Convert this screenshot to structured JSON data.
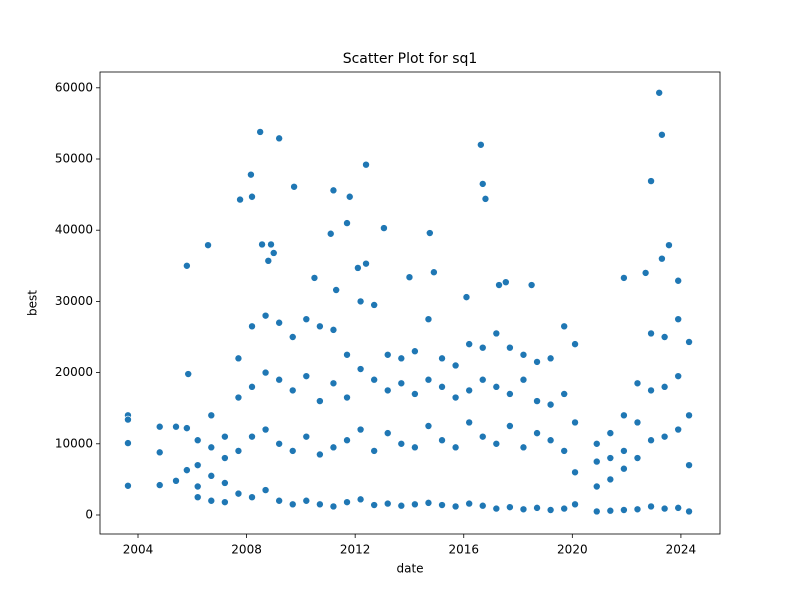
{
  "chart_data": {
    "type": "scatter",
    "title": "Scatter Plot for sq1",
    "x_label": "date",
    "y_label": "best",
    "color": "#1f77b4",
    "x": [
      2003.63,
      2003.63,
      2003.63,
      2003.63,
      2004.8,
      2004.8,
      2004.8,
      2005.4,
      2005.4,
      2005.8,
      2005.8,
      2005.8,
      2005.85,
      2006.58,
      2007.76,
      2008.16,
      2008.2,
      2008.5,
      2008.57,
      2008.8,
      2008.9,
      2009.0,
      2009.2,
      2009.75,
      2010.5,
      2011.1,
      2011.2,
      2011.3,
      2011.7,
      2011.8,
      2012.1,
      2012.4,
      2012.4,
      2013.06,
      2014.0,
      2014.75,
      2014.9,
      2016.1,
      2016.63,
      2016.7,
      2016.8,
      2017.3,
      2017.55,
      2018.5,
      2021.9,
      2022.7,
      2022.9,
      2023.2,
      2023.3,
      2023.3,
      2023.56,
      2023.9,
      2006.2,
      2006.2,
      2006.2,
      2006.2,
      2006.7,
      2006.7,
      2006.7,
      2006.7,
      2007.2,
      2007.2,
      2007.2,
      2007.2,
      2007.7,
      2007.7,
      2007.7,
      2007.7,
      2008.2,
      2008.2,
      2008.2,
      2008.2,
      2008.7,
      2008.7,
      2008.7,
      2008.7,
      2009.2,
      2009.2,
      2009.2,
      2009.2,
      2009.7,
      2009.7,
      2009.7,
      2009.7,
      2010.2,
      2010.2,
      2010.2,
      2010.2,
      2010.7,
      2010.7,
      2010.7,
      2010.7,
      2011.2,
      2011.2,
      2011.2,
      2011.2,
      2011.7,
      2011.7,
      2011.7,
      2011.7,
      2012.2,
      2012.2,
      2012.2,
      2012.2,
      2012.7,
      2012.7,
      2012.7,
      2012.7,
      2013.2,
      2013.2,
      2013.2,
      2013.2,
      2013.7,
      2013.7,
      2013.7,
      2013.7,
      2014.2,
      2014.2,
      2014.2,
      2014.2,
      2014.7,
      2014.7,
      2014.7,
      2014.7,
      2015.2,
      2015.2,
      2015.2,
      2015.2,
      2015.7,
      2015.7,
      2015.7,
      2015.7,
      2016.2,
      2016.2,
      2016.2,
      2016.2,
      2016.7,
      2016.7,
      2016.7,
      2016.7,
      2017.2,
      2017.2,
      2017.2,
      2017.2,
      2017.7,
      2017.7,
      2017.7,
      2017.7,
      2018.2,
      2018.2,
      2018.2,
      2018.2,
      2018.7,
      2018.7,
      2018.7,
      2018.7,
      2019.2,
      2019.2,
      2019.2,
      2019.2,
      2019.7,
      2019.7,
      2019.7,
      2019.7,
      2020.1,
      2020.1,
      2020.1,
      2020.1,
      2020.9,
      2020.9,
      2020.9,
      2020.9,
      2021.4,
      2021.4,
      2021.4,
      2021.4,
      2021.9,
      2021.9,
      2021.9,
      2021.9,
      2022.4,
      2022.4,
      2022.4,
      2022.4,
      2022.9,
      2022.9,
      2022.9,
      2022.9,
      2023.4,
      2023.4,
      2023.4,
      2023.4,
      2023.9,
      2023.9,
      2023.9,
      2023.9,
      2024.3,
      2024.3,
      2024.3,
      2024.3
    ],
    "values": [
      14000,
      13400,
      10100,
      4100,
      12400,
      8800,
      4200,
      12400,
      4800,
      12200,
      35000,
      6300,
      19800,
      37900,
      44300,
      47800,
      44700,
      53800,
      38000,
      35700,
      38000,
      36800,
      52900,
      46100,
      33300,
      39500,
      45600,
      31600,
      41000,
      44700,
      34700,
      49200,
      35300,
      40300,
      33400,
      39600,
      34100,
      30600,
      52000,
      46500,
      44400,
      32300,
      32700,
      32300,
      33300,
      34000,
      46900,
      59300,
      53400,
      36000,
      37900,
      32900,
      10500,
      7000,
      4000,
      2500,
      14000,
      9500,
      5500,
      2000,
      11000,
      8000,
      4500,
      1800,
      22000,
      16500,
      9000,
      3000,
      26500,
      18000,
      11000,
      2500,
      28000,
      20000,
      12000,
      3500,
      27000,
      19000,
      10000,
      2000,
      25000,
      17500,
      9000,
      1500,
      27500,
      19500,
      11000,
      2000,
      26500,
      16000,
      8500,
      1500,
      26000,
      18500,
      9500,
      1200,
      22500,
      16500,
      10500,
      1800,
      30000,
      20500,
      12000,
      2200,
      29500,
      19000,
      9000,
      1400,
      22500,
      17500,
      11500,
      1600,
      22000,
      18500,
      10000,
      1300,
      23000,
      17000,
      9500,
      1500,
      27500,
      19000,
      12500,
      1700,
      22000,
      18000,
      10500,
      1400,
      21000,
      16500,
      9500,
      1200,
      24000,
      17500,
      13000,
      1600,
      23500,
      19000,
      11000,
      1300,
      25500,
      18000,
      10000,
      900,
      23500,
      17000,
      12500,
      1100,
      22500,
      19000,
      9500,
      800,
      21500,
      16000,
      11500,
      1000,
      22000,
      15500,
      10500,
      700,
      26500,
      17000,
      9000,
      900,
      24000,
      13000,
      6000,
      1500,
      10000,
      7500,
      4000,
      500,
      11500,
      8000,
      5000,
      600,
      14000,
      9000,
      6500,
      700,
      18500,
      13000,
      8000,
      800,
      25500,
      17500,
      10500,
      1200,
      25000,
      18000,
      11000,
      900,
      27500,
      19500,
      12000,
      1000,
      24300,
      14000,
      7000,
      500
    ],
    "xlim": [
      2002.6,
      2025.44
    ],
    "xticks": [
      2004,
      2008,
      2012,
      2016,
      2020,
      2024
    ],
    "ylim": [
      -2670,
      62220
    ],
    "yticks": [
      0,
      10000,
      20000,
      30000,
      40000,
      50000,
      60000
    ],
    "grid": false
  }
}
